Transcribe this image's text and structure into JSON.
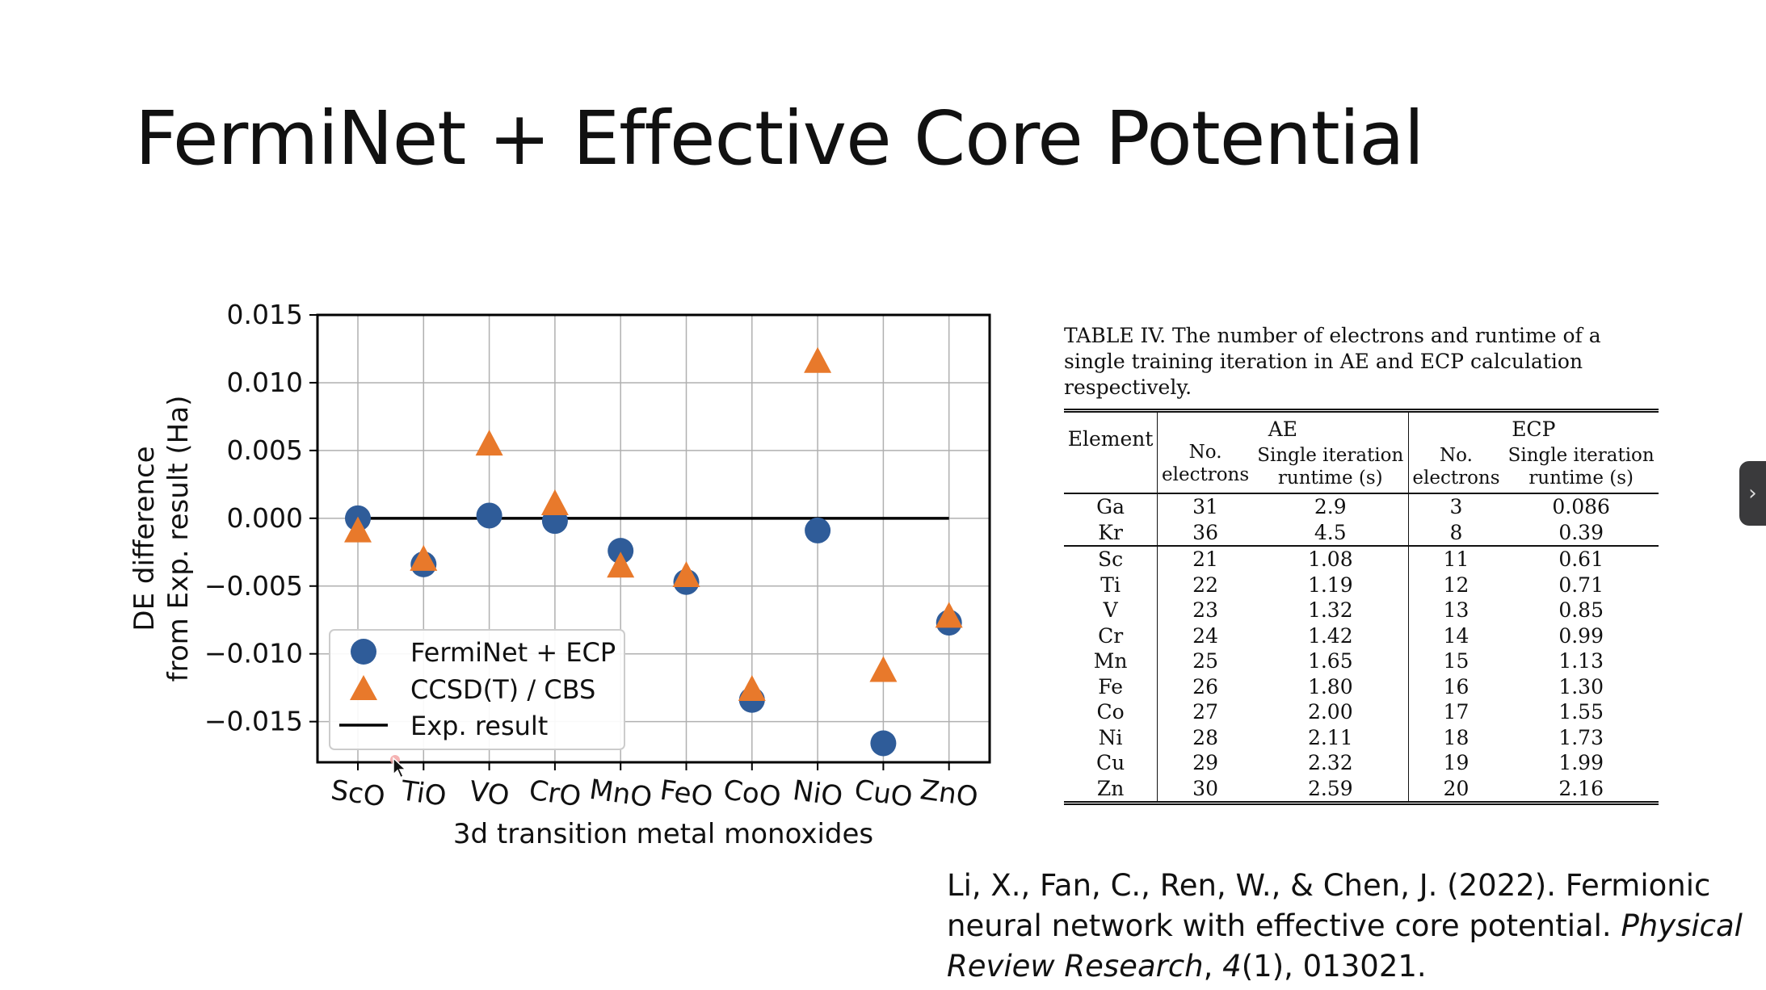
{
  "slide": {
    "title": "FermiNet + Effective Core Potential"
  },
  "chart_data": {
    "type": "scatter",
    "categories": [
      "ScO",
      "TiO",
      "VO",
      "CrO",
      "MnO",
      "FeO",
      "CoO",
      "NiO",
      "CuO",
      "ZnO"
    ],
    "series": [
      {
        "name": "FermiNet + ECP",
        "marker": "circle",
        "color": "#2f5c99",
        "values": [
          0.0,
          -0.0034,
          0.0002,
          -0.0002,
          -0.0024,
          -0.0047,
          -0.0134,
          -0.0009,
          -0.0166,
          -0.0077
        ]
      },
      {
        "name": "CCSD(T) / CBS",
        "marker": "triangle",
        "color": "#e8792b",
        "values": [
          -0.001,
          -0.0031,
          0.0054,
          0.001,
          -0.0036,
          -0.0043,
          -0.0127,
          0.0115,
          -0.0113,
          -0.0073
        ]
      },
      {
        "name": "Exp. result",
        "marker": "line",
        "color": "#000000",
        "values": [
          0,
          0,
          0,
          0,
          0,
          0,
          0,
          0,
          0,
          0
        ]
      }
    ],
    "ylim": [
      -0.018,
      0.015
    ],
    "yticks": [
      0.015,
      0.01,
      0.005,
      0.0,
      -0.005,
      -0.01,
      -0.015
    ],
    "ytick_labels": [
      "0.015",
      "0.010",
      "0.005",
      "0.000",
      "−0.005",
      "−0.010",
      "−0.015"
    ],
    "ylabel_line1": "DE difference",
    "ylabel_line2": "from Exp. result (Ha)",
    "xlabel": "3d transition metal monoxides",
    "grid": true,
    "legend_position": "lower-left"
  },
  "table": {
    "caption": "TABLE IV. The number of electrons and runtime of a single training iteration in AE and ECP calculation respectively.",
    "col_element": "Element",
    "group_ae": "AE",
    "group_ecp": "ECP",
    "sub_no_line1": "No.",
    "sub_no_line2": "electrons",
    "sub_rt_line1": "Single iteration",
    "sub_rt_line2": "runtime (s)",
    "rows_a": [
      [
        "Ga",
        "31",
        "2.9",
        "3",
        "0.086"
      ],
      [
        "Kr",
        "36",
        "4.5",
        "8",
        "0.39"
      ]
    ],
    "rows_b": [
      [
        "Sc",
        "21",
        "1.08",
        "11",
        "0.61"
      ],
      [
        "Ti",
        "22",
        "1.19",
        "12",
        "0.71"
      ],
      [
        "V",
        "23",
        "1.32",
        "13",
        "0.85"
      ],
      [
        "Cr",
        "24",
        "1.42",
        "14",
        "0.99"
      ],
      [
        "Mn",
        "25",
        "1.65",
        "15",
        "1.13"
      ],
      [
        "Fe",
        "26",
        "1.80",
        "16",
        "1.30"
      ],
      [
        "Co",
        "27",
        "2.00",
        "17",
        "1.55"
      ],
      [
        "Ni",
        "28",
        "2.11",
        "18",
        "1.73"
      ],
      [
        "Cu",
        "29",
        "2.32",
        "19",
        "1.99"
      ],
      [
        "Zn",
        "30",
        "2.59",
        "20",
        "2.16"
      ]
    ]
  },
  "citation": {
    "authors": "Li, X., Fan, C., Ren, W., & Chen, J. (2022). Fermionic neural network with effective core potential. ",
    "journal": "Physical Review Research",
    "sep": ", ",
    "volume": "4",
    "rest": "(1), 013021."
  },
  "nav": {
    "next_icon": "chevron-right-icon",
    "glyph": "›"
  }
}
